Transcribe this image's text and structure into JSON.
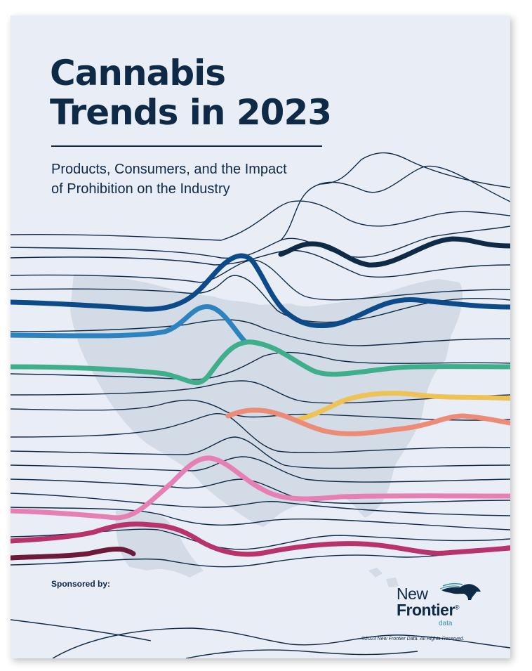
{
  "cover": {
    "title_line1": "Cannabis",
    "title_line2": "Trends in 2023",
    "subtitle_line1": "Products, Consumers, and the Impact",
    "subtitle_line2": "of Prohibition on the Industry",
    "sponsored_label": "Sponsored by:",
    "copyright": "©2023 New Frontier Data. All Rights Reserved."
  },
  "logo": {
    "word1": "New",
    "word2": "Frontier",
    "registered": "®",
    "word3": "data"
  },
  "colors": {
    "navy": "#0e2a47",
    "background": "#e9eef6",
    "map": "#d3dbe6",
    "blue_dark": "#0d4a8a",
    "blue_light": "#2c83bf",
    "green": "#3fae8a",
    "yellow": "#efc256",
    "salmon": "#ec8b76",
    "pink": "#e57fb4",
    "magenta": "#b8326c",
    "maroon": "#6d1a3a"
  }
}
